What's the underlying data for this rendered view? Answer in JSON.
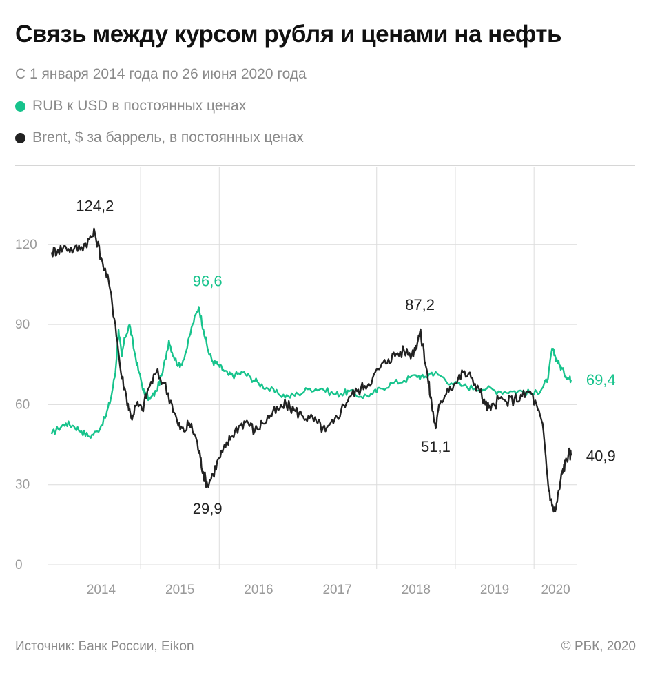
{
  "header": {
    "title": "Связь между курсом рубля и ценами на нефть",
    "subtitle": "С 1 января 2014 года по 26 июня 2020 года"
  },
  "legend": [
    {
      "label": "RUB к USD в постоянных ценах",
      "color": "#17c38c"
    },
    {
      "label": "Brent, $ за баррель, в постоянных ценах",
      "color": "#222222"
    }
  ],
  "footer": {
    "source": "Источник: Банк России, Eikon",
    "copyright": "© РБК, 2020"
  },
  "chart_data": {
    "type": "line",
    "ylim": [
      0,
      130
    ],
    "yticks": [
      0,
      30,
      60,
      90,
      120
    ],
    "ytick_labels": [
      "0",
      "30",
      "60",
      "90",
      "120"
    ],
    "xlim": [
      2013.87,
      2020.55
    ],
    "xticks": [
      2014,
      2015,
      2016,
      2017,
      2018,
      2019,
      2020
    ],
    "xtick_labels": [
      "2014",
      "2015",
      "2016",
      "2017",
      "2018",
      "2019",
      "2020"
    ],
    "grid": true,
    "series": [
      {
        "name": "RUB к USD в постоянных ценах",
        "color": "#17c38c",
        "x": [
          2013.87,
          2013.95,
          2014.05,
          2014.15,
          2014.25,
          2014.35,
          2014.45,
          2014.55,
          2014.62,
          2014.68,
          2014.72,
          2014.76,
          2014.8,
          2014.86,
          2014.92,
          2014.98,
          2015.05,
          2015.12,
          2015.2,
          2015.28,
          2015.36,
          2015.42,
          2015.5,
          2015.58,
          2015.66,
          2015.74,
          2015.8,
          2015.86,
          2015.92,
          2015.98,
          2016.05,
          2016.12,
          2016.2,
          2016.3,
          2016.4,
          2016.5,
          2016.62,
          2016.75,
          2016.88,
          2017.0,
          2017.15,
          2017.3,
          2017.45,
          2017.55,
          2017.65,
          2017.8,
          2017.95,
          2018.05,
          2018.2,
          2018.35,
          2018.5,
          2018.6,
          2018.7,
          2018.8,
          2018.95,
          2019.1,
          2019.25,
          2019.4,
          2019.55,
          2019.7,
          2019.85,
          2020.0,
          2020.1,
          2020.18,
          2020.23,
          2020.27,
          2020.32,
          2020.38,
          2020.43,
          2020.47
        ],
        "y": [
          49,
          51,
          53,
          52,
          50,
          48,
          50,
          55,
          62,
          72,
          88,
          78,
          85,
          90,
          80,
          72,
          64,
          62,
          65,
          72,
          84,
          78,
          74,
          80,
          90,
          96.6,
          88,
          80,
          76,
          75,
          73,
          71,
          71,
          72,
          70,
          68,
          66,
          64,
          63,
          64,
          66,
          66,
          64,
          64,
          65,
          63,
          64,
          66,
          68,
          69,
          71,
          70,
          72,
          71,
          68,
          67,
          66,
          66,
          65,
          65,
          65,
          64,
          66,
          70,
          81,
          78,
          75,
          72,
          70,
          69.4
        ]
      },
      {
        "name": "Brent, $ за баррель, в постоянных ценах",
        "color": "#222222",
        "x": [
          2013.87,
          2013.95,
          2014.05,
          2014.15,
          2014.25,
          2014.35,
          2014.42,
          2014.5,
          2014.6,
          2014.68,
          2014.75,
          2014.82,
          2014.88,
          2014.95,
          2015.02,
          2015.1,
          2015.2,
          2015.3,
          2015.4,
          2015.48,
          2015.55,
          2015.62,
          2015.7,
          2015.76,
          2015.8,
          2015.85,
          2015.92,
          2016.0,
          2016.08,
          2016.15,
          2016.25,
          2016.35,
          2016.45,
          2016.55,
          2016.65,
          2016.75,
          2016.85,
          2016.95,
          2017.05,
          2017.15,
          2017.25,
          2017.35,
          2017.45,
          2017.55,
          2017.65,
          2017.75,
          2017.85,
          2017.95,
          2018.05,
          2018.15,
          2018.25,
          2018.35,
          2018.45,
          2018.5,
          2018.55,
          2018.6,
          2018.65,
          2018.7,
          2018.75,
          2018.8,
          2018.9,
          2019.0,
          2019.1,
          2019.2,
          2019.3,
          2019.38,
          2019.45,
          2019.55,
          2019.65,
          2019.75,
          2019.85,
          2019.95,
          2020.05,
          2020.12,
          2020.18,
          2020.23,
          2020.27,
          2020.32,
          2020.36,
          2020.4,
          2020.44,
          2020.47
        ],
        "y": [
          117,
          118,
          119,
          118,
          119,
          122,
          124.2,
          115,
          105,
          90,
          72,
          63,
          55,
          60,
          58,
          66,
          72,
          68,
          60,
          52,
          50,
          53,
          48,
          40,
          34,
          29.9,
          34,
          40,
          44,
          48,
          52,
          54,
          50,
          53,
          56,
          58,
          60,
          58,
          56,
          55,
          53,
          50,
          53,
          58,
          63,
          65,
          67,
          70,
          74,
          77,
          79,
          80,
          79,
          82,
          87.2,
          80,
          70,
          60,
          51.1,
          60,
          66,
          68,
          72,
          70,
          66,
          60,
          58,
          62,
          61,
          62,
          63,
          65,
          58,
          50,
          30,
          22,
          20,
          28,
          35,
          38,
          42,
          40.9
        ]
      }
    ],
    "annotations": [
      {
        "text": "124,2",
        "x": 2014.42,
        "y": 124.2,
        "color": "#222222"
      },
      {
        "text": "96,6",
        "x": 2015.85,
        "y": 96.6,
        "color": "#17c38c"
      },
      {
        "text": "29,9",
        "x": 2015.85,
        "y": 29.9,
        "color": "#222222"
      },
      {
        "text": "87,2",
        "x": 2018.55,
        "y": 87.2,
        "color": "#222222"
      },
      {
        "text": "51,1",
        "x": 2018.75,
        "y": 51.1,
        "color": "#222222"
      },
      {
        "text": "69,4",
        "x": 2020.47,
        "y": 69.4,
        "color": "#17c38c"
      },
      {
        "text": "40,9",
        "x": 2020.47,
        "y": 40.9,
        "color": "#222222"
      }
    ]
  }
}
